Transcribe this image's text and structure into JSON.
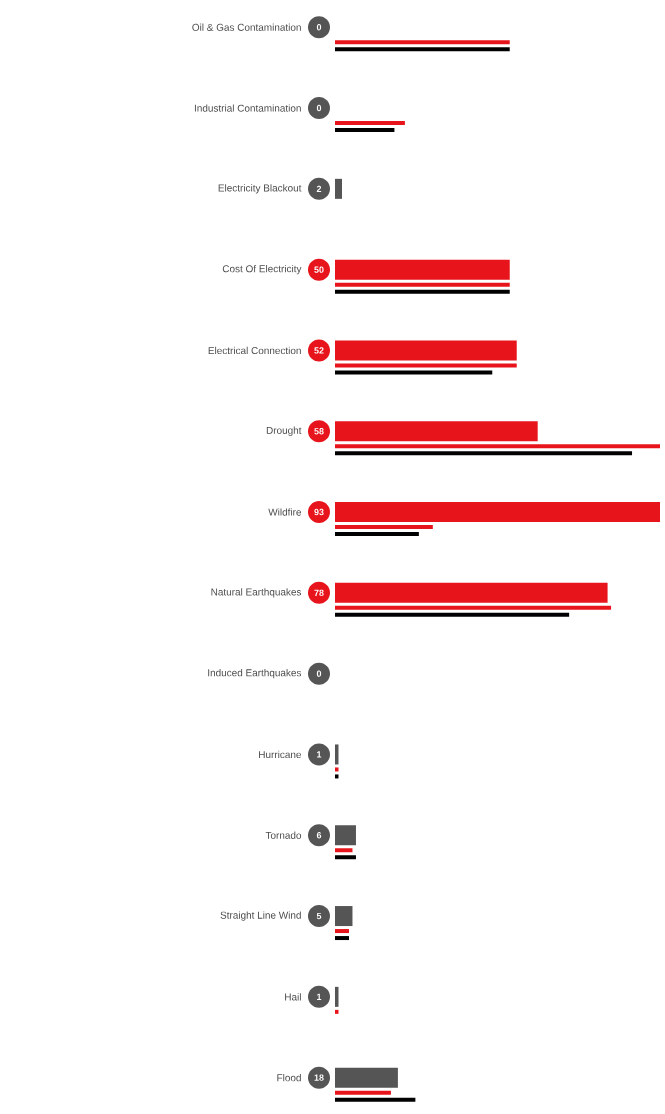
{
  "chart_data": {
    "type": "bar",
    "orientation": "horizontal",
    "categories": [
      "Oil & Gas Contamination",
      "Industrial Contamination",
      "Electricity Blackout",
      "Cost Of Electricity",
      "Electrical Connection",
      "Drought",
      "Wildfire",
      "Natural Earthquakes",
      "Induced Earthquakes",
      "Hurricane",
      "Tornado",
      "Straight Line Wind",
      "Hail",
      "Flood"
    ],
    "series": [
      {
        "values": [
          0,
          0,
          2,
          50,
          52,
          58,
          93,
          78,
          0,
          1,
          6,
          5,
          1,
          18
        ],
        "value_labels": [
          "0",
          "0",
          "2",
          "50",
          "52",
          "58",
          "93",
          "78",
          "0",
          "1",
          "6",
          "5",
          "1",
          "18"
        ],
        "colors": [
          "#555555",
          "#555555",
          "#555555",
          "#e8141b",
          "#e8141b",
          "#e8141b",
          "#e8141b",
          "#e8141b",
          "#555555",
          "#555555",
          "#555555",
          "#555555",
          "#555555",
          "#555555"
        ]
      },
      {
        "color": "#e8141b",
        "values": [
          50,
          20,
          0,
          50,
          52,
          93,
          28,
          79,
          0,
          1,
          5,
          4,
          1,
          16
        ]
      },
      {
        "color": "#000000",
        "values": [
          50,
          17,
          0,
          50,
          45,
          85,
          24,
          67,
          0,
          1,
          6,
          4,
          0,
          23
        ]
      }
    ],
    "tick_labels": "y"
  }
}
